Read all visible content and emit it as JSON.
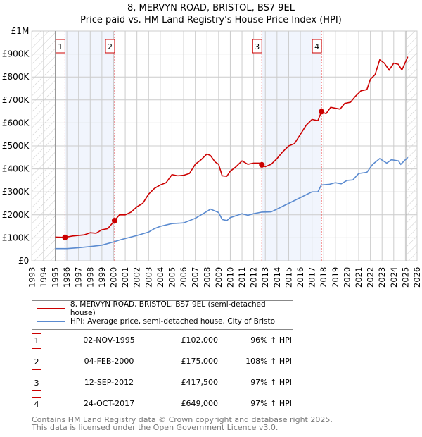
{
  "title": "8, MERVYN ROAD, BRISTOL, BS7 9EL",
  "subtitle": "Price paid vs. HM Land Registry's House Price Index (HPI)",
  "chart_data": {
    "type": "line",
    "xlim": [
      1993,
      2026
    ],
    "ylim": [
      0,
      1000000
    ],
    "yticks": [
      {
        "v": 0,
        "label": "£0"
      },
      {
        "v": 100000,
        "label": "£100K"
      },
      {
        "v": 200000,
        "label": "£200K"
      },
      {
        "v": 300000,
        "label": "£300K"
      },
      {
        "v": 400000,
        "label": "£400K"
      },
      {
        "v": 500000,
        "label": "£500K"
      },
      {
        "v": 600000,
        "label": "£600K"
      },
      {
        "v": 700000,
        "label": "£700K"
      },
      {
        "v": 800000,
        "label": "£800K"
      },
      {
        "v": 900000,
        "label": "£900K"
      },
      {
        "v": 1000000,
        "label": "£1M"
      }
    ],
    "xticks": [
      "1993",
      "1994",
      "1995",
      "1996",
      "1997",
      "1998",
      "1999",
      "2000",
      "2001",
      "2002",
      "2003",
      "2004",
      "2005",
      "2006",
      "2007",
      "2008",
      "2009",
      "2010",
      "2011",
      "2012",
      "2013",
      "2014",
      "2015",
      "2016",
      "2017",
      "2018",
      "2019",
      "2020",
      "2021",
      "2022",
      "2023",
      "2024",
      "2025",
      "2026"
    ],
    "hatched_ranges": [
      [
        1993,
        1995
      ],
      [
        2025.1,
        2026
      ]
    ],
    "shaded_ranges": [
      [
        1995.84,
        2000.09
      ],
      [
        2012.7,
        2017.81
      ]
    ],
    "series": [
      {
        "name": "8, MERVYN ROAD, BRISTOL, BS7 9EL (semi-detached house)",
        "color": "#cc0000",
        "points": [
          [
            1995,
            103000
          ],
          [
            1995.84,
            102000
          ],
          [
            1996.5,
            108000
          ],
          [
            1997.5,
            113000
          ],
          [
            1998,
            122000
          ],
          [
            1998.5,
            120000
          ],
          [
            1999,
            135000
          ],
          [
            1999.5,
            140000
          ],
          [
            2000.09,
            175000
          ],
          [
            2000.5,
            200000
          ],
          [
            2001,
            200000
          ],
          [
            2001.5,
            212000
          ],
          [
            2002,
            235000
          ],
          [
            2002.5,
            250000
          ],
          [
            2003,
            290000
          ],
          [
            2003.5,
            315000
          ],
          [
            2004,
            330000
          ],
          [
            2004.5,
            340000
          ],
          [
            2005,
            375000
          ],
          [
            2005.5,
            370000
          ],
          [
            2006,
            372000
          ],
          [
            2006.5,
            380000
          ],
          [
            2007,
            420000
          ],
          [
            2007.5,
            440000
          ],
          [
            2008,
            465000
          ],
          [
            2008.3,
            458000
          ],
          [
            2008.7,
            430000
          ],
          [
            2009,
            420000
          ],
          [
            2009.3,
            370000
          ],
          [
            2009.7,
            368000
          ],
          [
            2010,
            390000
          ],
          [
            2010.5,
            410000
          ],
          [
            2011,
            435000
          ],
          [
            2011.5,
            420000
          ],
          [
            2012,
            425000
          ],
          [
            2012.5,
            425000
          ],
          [
            2012.7,
            417500
          ],
          [
            2013,
            410000
          ],
          [
            2013.5,
            420000
          ],
          [
            2014,
            445000
          ],
          [
            2014.5,
            475000
          ],
          [
            2015,
            500000
          ],
          [
            2015.5,
            510000
          ],
          [
            2016,
            550000
          ],
          [
            2016.5,
            590000
          ],
          [
            2017,
            615000
          ],
          [
            2017.5,
            610000
          ],
          [
            2017.81,
            649000
          ],
          [
            2018.2,
            640000
          ],
          [
            2018.6,
            668000
          ],
          [
            2019.4,
            660000
          ],
          [
            2019.8,
            685000
          ],
          [
            2020.3,
            690000
          ],
          [
            2020.7,
            715000
          ],
          [
            2021.2,
            740000
          ],
          [
            2021.7,
            745000
          ],
          [
            2022,
            790000
          ],
          [
            2022.4,
            810000
          ],
          [
            2022.8,
            875000
          ],
          [
            2023.2,
            860000
          ],
          [
            2023.6,
            830000
          ],
          [
            2024,
            860000
          ],
          [
            2024.4,
            855000
          ],
          [
            2024.7,
            830000
          ],
          [
            2025.2,
            888000
          ]
        ]
      },
      {
        "name": "HPI: Average price, semi-detached house, City of Bristol",
        "color": "#5b8bd0",
        "points": [
          [
            1995,
            53000
          ],
          [
            1996,
            53000
          ],
          [
            1997,
            57000
          ],
          [
            1998,
            62000
          ],
          [
            1999,
            68000
          ],
          [
            2000,
            82000
          ],
          [
            2000.5,
            90000
          ],
          [
            2001,
            97000
          ],
          [
            2002,
            110000
          ],
          [
            2003,
            125000
          ],
          [
            2003.5,
            140000
          ],
          [
            2004,
            150000
          ],
          [
            2005,
            162000
          ],
          [
            2006,
            165000
          ],
          [
            2006.5,
            175000
          ],
          [
            2007,
            185000
          ],
          [
            2008,
            215000
          ],
          [
            2008.3,
            225000
          ],
          [
            2009,
            210000
          ],
          [
            2009.3,
            180000
          ],
          [
            2009.7,
            175000
          ],
          [
            2010,
            188000
          ],
          [
            2011,
            205000
          ],
          [
            2011.5,
            198000
          ],
          [
            2012,
            205000
          ],
          [
            2012.7,
            212000
          ],
          [
            2013.5,
            213000
          ],
          [
            2014,
            225000
          ],
          [
            2015,
            250000
          ],
          [
            2016,
            275000
          ],
          [
            2017,
            300000
          ],
          [
            2017.5,
            300000
          ],
          [
            2017.8,
            330000
          ],
          [
            2018.5,
            333000
          ],
          [
            2019,
            340000
          ],
          [
            2019.5,
            335000
          ],
          [
            2020,
            350000
          ],
          [
            2020.5,
            352000
          ],
          [
            2021,
            380000
          ],
          [
            2021.7,
            385000
          ],
          [
            2022.2,
            420000
          ],
          [
            2022.8,
            445000
          ],
          [
            2023.4,
            425000
          ],
          [
            2023.8,
            440000
          ],
          [
            2024.4,
            435000
          ],
          [
            2024.6,
            420000
          ],
          [
            2025.2,
            450000
          ]
        ]
      }
    ],
    "sales": [
      {
        "n": "1",
        "x": 1995.84,
        "y": 102000
      },
      {
        "n": "2",
        "x": 2000.09,
        "y": 175000
      },
      {
        "n": "3",
        "x": 2012.7,
        "y": 417500
      },
      {
        "n": "4",
        "x": 2017.81,
        "y": 649000
      }
    ]
  },
  "legend": {
    "red": "8, MERVYN ROAD, BRISTOL, BS7 9EL (semi-detached house)",
    "blue": "HPI: Average price, semi-detached house, City of Bristol"
  },
  "transactions": [
    {
      "n": "1",
      "date": "02-NOV-1995",
      "price": "£102,000",
      "hpi": "96% ↑ HPI"
    },
    {
      "n": "2",
      "date": "04-FEB-2000",
      "price": "£175,000",
      "hpi": "108% ↑ HPI"
    },
    {
      "n": "3",
      "date": "12-SEP-2012",
      "price": "£417,500",
      "hpi": "97% ↑ HPI"
    },
    {
      "n": "4",
      "date": "24-OCT-2017",
      "price": "£649,000",
      "hpi": "97% ↑ HPI"
    }
  ],
  "footer": {
    "line1": "Contains HM Land Registry data © Crown copyright and database right 2025.",
    "line2": "This data is licensed under the Open Government Licence v3.0."
  }
}
